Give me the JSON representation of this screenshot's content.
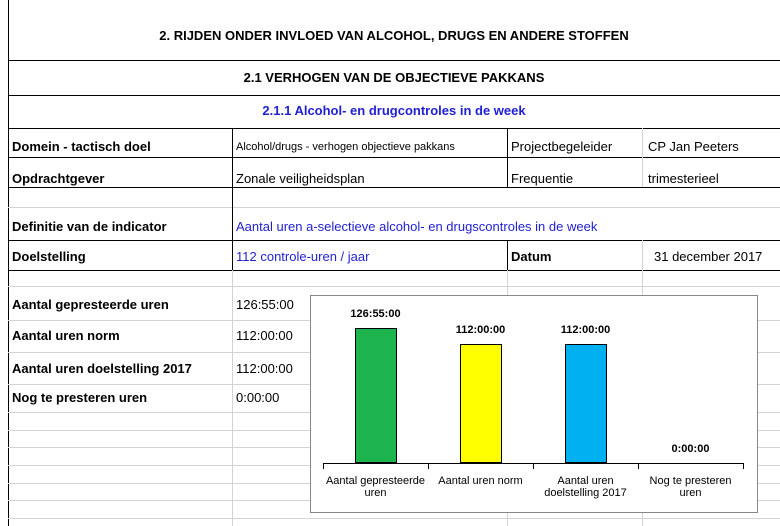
{
  "header": {
    "title": "2. RIJDEN ONDER INVLOED VAN ALCOHOL, DRUGS EN ANDERE STOFFEN",
    "section": "2.1 VERHOGEN VAN DE OBJECTIEVE PAKKANS",
    "subsection": "2.1.1 Alcohol- en drugcontroles in de week"
  },
  "table": {
    "rows": [
      [
        "Domein - tactisch doel",
        "Alcohol/drugs - verhogen objectieve pakkans",
        "Projectbegeleider",
        "CP Jan Peeters"
      ],
      [
        "Opdrachtgever",
        "Zonale veiligheidsplan",
        "Frequentie",
        "trimesterieel"
      ],
      [
        "Definitie van de indicator",
        "Aantal uren a-selectieve alcohol- en drugscontroles in de week"
      ],
      [
        "Doelstelling",
        "112 controle-uren / jaar",
        "Datum",
        "31 december 2017"
      ]
    ]
  },
  "summary": {
    "rows": [
      [
        "Aantal gepresteerde uren",
        "126:55:00"
      ],
      [
        "Aantal uren norm",
        "112:00:00"
      ],
      [
        "Aantal uren doelstelling 2017",
        "112:00:00"
      ],
      [
        "Nog te presteren uren",
        "0:00:00"
      ]
    ]
  },
  "chart_data": {
    "type": "bar",
    "categories": [
      "Aantal gepresteerde uren",
      "Aantal uren norm",
      "Aantal uren doelstelling 2017",
      "Nog te presteren uren"
    ],
    "values": [
      126.9167,
      112,
      112,
      0
    ],
    "value_labels": [
      "126:55:00",
      "112:00:00",
      "112:00:00",
      "0:00:00"
    ],
    "colors": [
      "#1db34f",
      "#ffff00",
      "#00b0f0",
      "#ffffff"
    ]
  }
}
